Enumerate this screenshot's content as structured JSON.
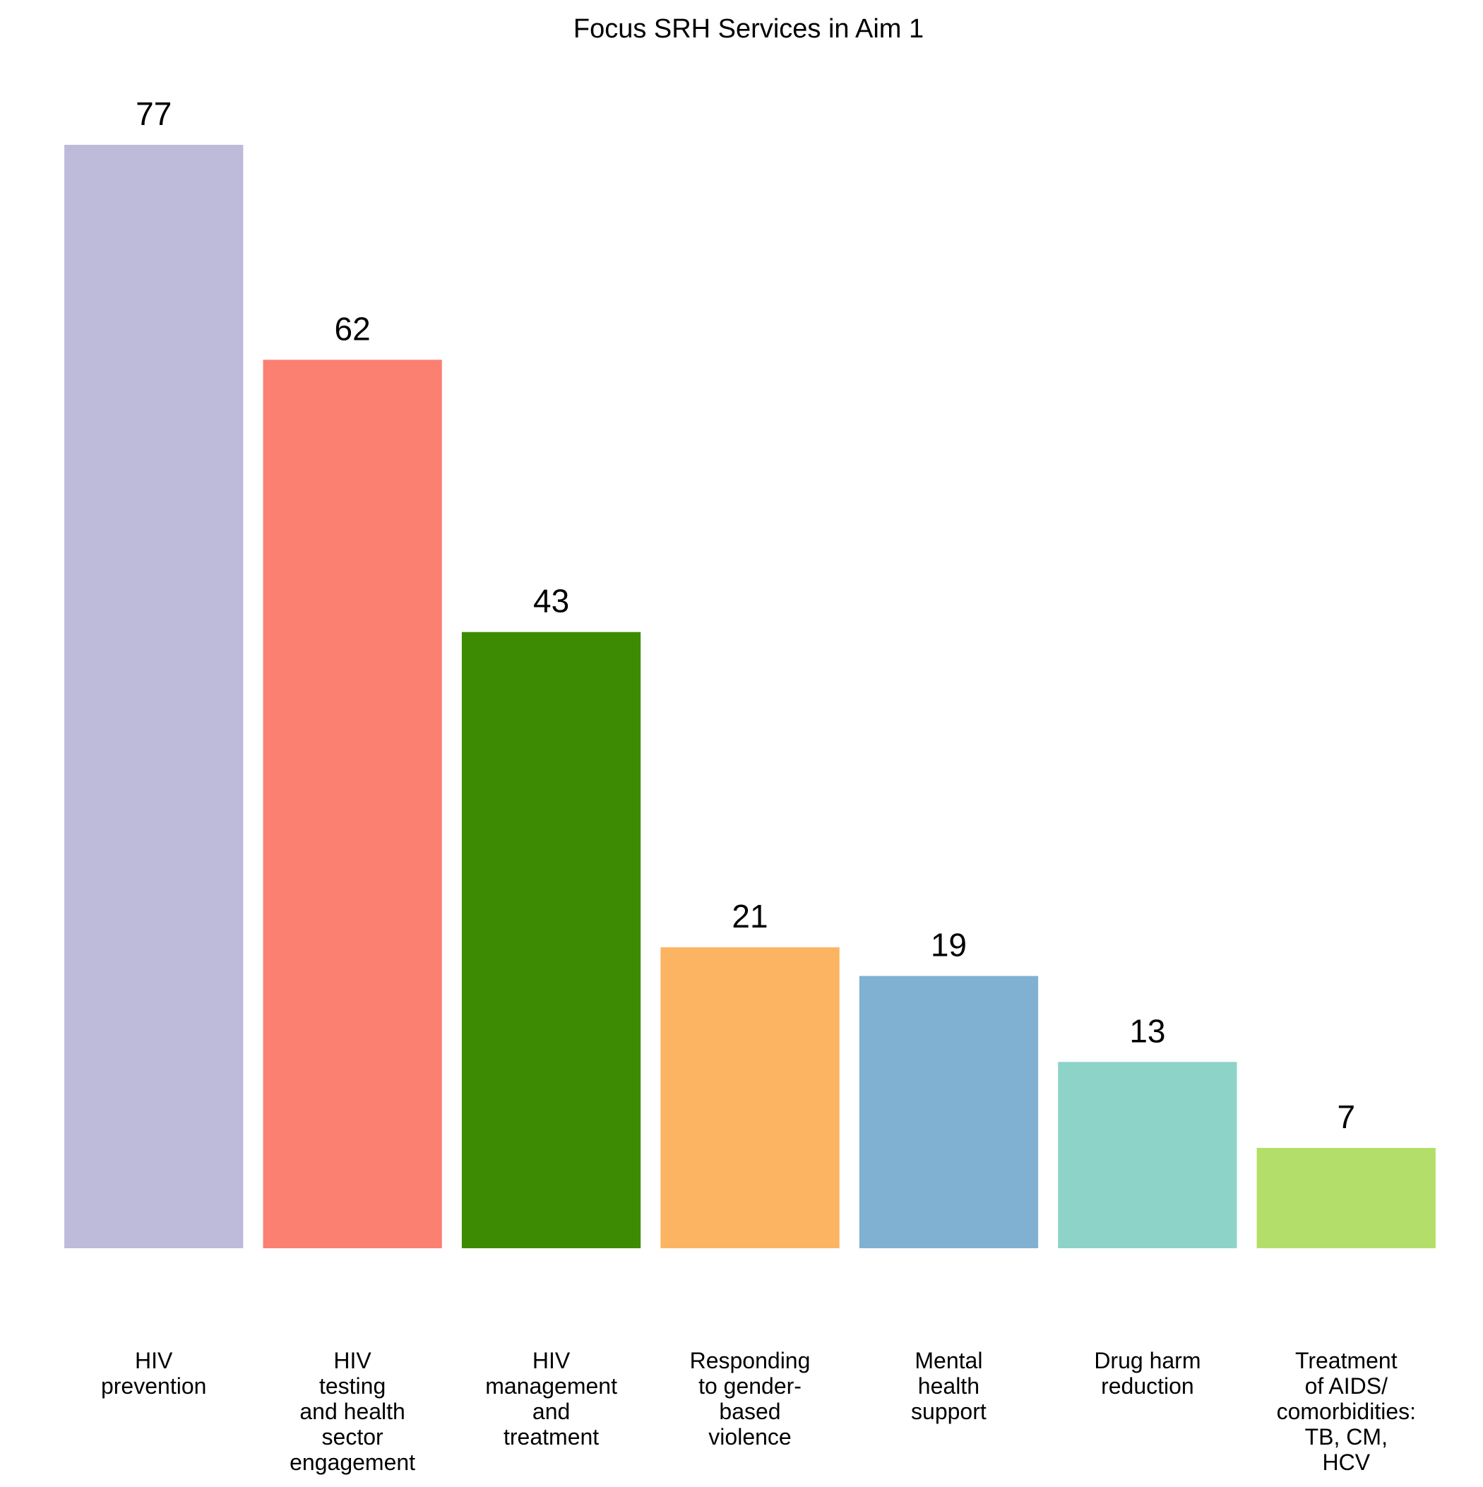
{
  "chart_data": {
    "type": "bar",
    "title": "Focus SRH Services in Aim 1",
    "xlabel": "",
    "ylabel": "",
    "ylim": [
      0,
      77
    ],
    "grid": false,
    "legend": "none",
    "categories": [
      "HIV prevention",
      "HIV testing and health sector engagement",
      "HIV management and treatment",
      "Responding to gender-based violence",
      "Mental health support",
      "Drug harm reduction",
      "Treatment of AIDS/ comorbidities: TB, CM, HCV"
    ],
    "category_label_lines": [
      [
        "HIV",
        "prevention"
      ],
      [
        "HIV",
        "testing",
        "and health",
        "sector",
        "engagement"
      ],
      [
        "HIV",
        "management",
        "and",
        "treatment"
      ],
      [
        "Responding",
        "to gender-",
        "based",
        "violence"
      ],
      [
        "Mental",
        "health",
        "support"
      ],
      [
        "Drug harm",
        "reduction"
      ],
      [
        "Treatment",
        "of AIDS/",
        "comorbidities:",
        "TB, CM,",
        "HCV"
      ]
    ],
    "values": [
      77,
      62,
      43,
      21,
      19,
      13,
      7
    ],
    "value_labels": [
      "77",
      "62",
      "43",
      "21",
      "19",
      "13",
      "7"
    ],
    "colors": [
      "#BEBADA",
      "#FB8072",
      "#3D8B02",
      "#FDB462",
      "#80B1D3",
      "#8DD3C7",
      "#B3DE69"
    ]
  }
}
